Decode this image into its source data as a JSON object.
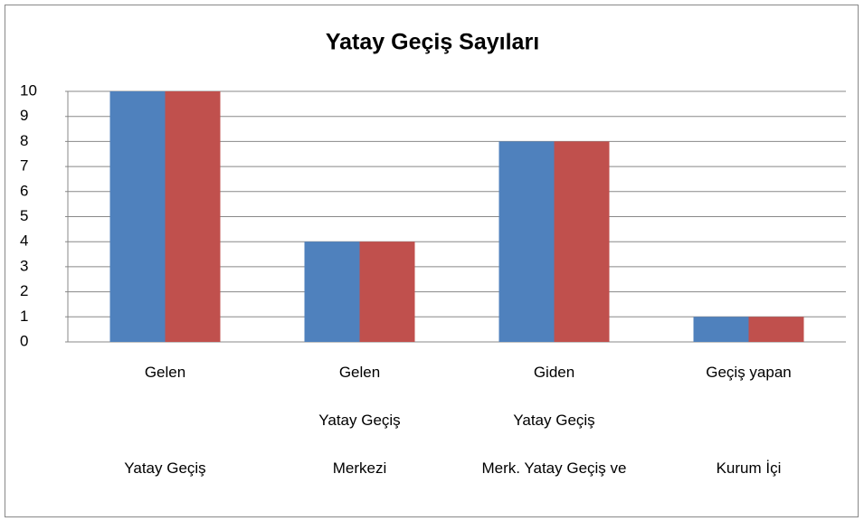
{
  "chart_data": {
    "type": "bar",
    "title": "Yatay Geçiş Sayıları",
    "categories": [
      [
        "Gelen",
        "Yatay Geçiş"
      ],
      [
        "Gelen",
        "Yatay Geçiş",
        "Merkezi"
      ],
      [
        "Giden",
        "Yatay Geçiş",
        "Merk. Yatay Geçiş ve"
      ],
      [
        "Geçiş yapan",
        "Kurum İçi"
      ]
    ],
    "series": [
      {
        "color": "#4f81bd",
        "values": [
          10,
          4,
          8,
          1
        ]
      },
      {
        "color": "#c0504d",
        "values": [
          10,
          4,
          8,
          1
        ]
      }
    ],
    "ylim": [
      0,
      10
    ],
    "yticks": [
      0,
      1,
      2,
      3,
      4,
      5,
      6,
      7,
      8,
      9,
      10
    ],
    "grid": true
  }
}
